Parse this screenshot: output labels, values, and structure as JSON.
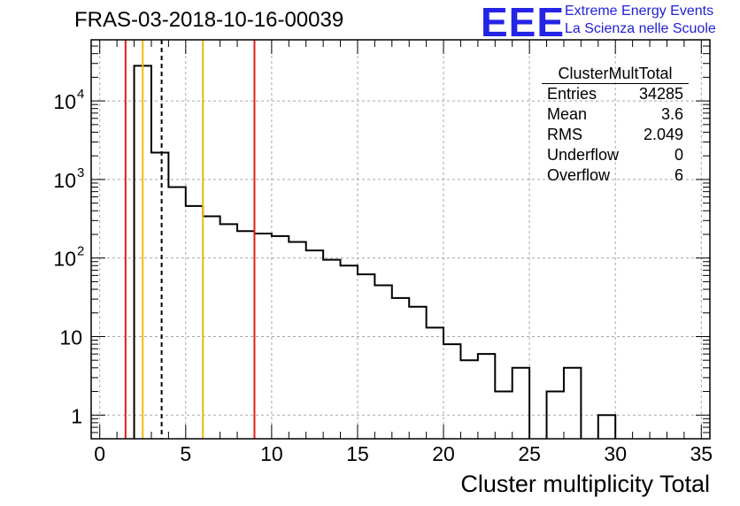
{
  "title": "FRAS-03-2018-10-16-00039",
  "logo": {
    "text": "EEE",
    "line1": "Extreme Energy Events",
    "line2": "La Scienza nelle Scuole",
    "color": "#2424e6"
  },
  "stats": {
    "title": "ClusterMultTotal",
    "rows": [
      {
        "label": "Entries",
        "value": "34285"
      },
      {
        "label": "Mean",
        "value": "3.6"
      },
      {
        "label": "RMS",
        "value": "2.049"
      },
      {
        "label": "Underflow",
        "value": "0"
      },
      {
        "label": "Overflow",
        "value": "6"
      }
    ]
  },
  "chart_data": {
    "type": "bar",
    "style": "step-histogram",
    "title": "FRAS-03-2018-10-16-00039",
    "xlabel": "Cluster multiplicity Total",
    "ylabel": "",
    "xlim": [
      -0.5,
      35.5
    ],
    "ylim": [
      0.5,
      60000
    ],
    "y_scale": "log",
    "grid": true,
    "bin_width": 1,
    "bins": [
      {
        "x": 2.5,
        "y": 28000
      },
      {
        "x": 3.5,
        "y": 2200
      },
      {
        "x": 4.5,
        "y": 800
      },
      {
        "x": 5.5,
        "y": 460
      },
      {
        "x": 6.5,
        "y": 340
      },
      {
        "x": 7.5,
        "y": 270
      },
      {
        "x": 8.5,
        "y": 220
      },
      {
        "x": 9.5,
        "y": 205
      },
      {
        "x": 10.5,
        "y": 190
      },
      {
        "x": 11.5,
        "y": 160
      },
      {
        "x": 12.5,
        "y": 125
      },
      {
        "x": 13.5,
        "y": 95
      },
      {
        "x": 14.5,
        "y": 80
      },
      {
        "x": 15.5,
        "y": 62
      },
      {
        "x": 16.5,
        "y": 45
      },
      {
        "x": 17.5,
        "y": 31
      },
      {
        "x": 18.5,
        "y": 24
      },
      {
        "x": 19.5,
        "y": 13
      },
      {
        "x": 20.5,
        "y": 8
      },
      {
        "x": 21.5,
        "y": 5
      },
      {
        "x": 22.5,
        "y": 6
      },
      {
        "x": 23.5,
        "y": 2
      },
      {
        "x": 24.5,
        "y": 4
      },
      {
        "x": 26.5,
        "y": 2
      },
      {
        "x": 27.5,
        "y": 4
      },
      {
        "x": 29.5,
        "y": 1
      }
    ],
    "x_ticks": [
      0,
      5,
      10,
      15,
      20,
      25,
      30,
      35
    ],
    "y_ticks": [
      {
        "value": 1,
        "label": "1"
      },
      {
        "value": 10,
        "label": "10"
      },
      {
        "value": 100,
        "label": "10",
        "exp": "2"
      },
      {
        "value": 1000,
        "label": "10",
        "exp": "3"
      },
      {
        "value": 10000,
        "label": "10",
        "exp": "4"
      }
    ],
    "markers": [
      {
        "x": 1.5,
        "color": "#e01b1b",
        "style": "solid"
      },
      {
        "x": 2.5,
        "color": "#f2b90f",
        "style": "solid"
      },
      {
        "x": 3.6,
        "color": "#000000",
        "style": "dashed"
      },
      {
        "x": 6.0,
        "color": "#f2b90f",
        "style": "solid"
      },
      {
        "x": 9.0,
        "color": "#e01b1b",
        "style": "solid"
      }
    ]
  }
}
